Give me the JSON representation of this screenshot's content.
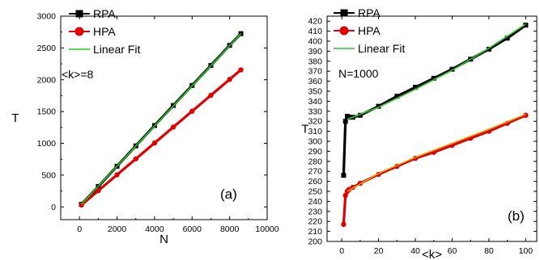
{
  "chart_data": [
    {
      "type": "line",
      "panel_label": "(a)",
      "annotation": "<k>=8",
      "xlabel": "N",
      "ylabel": "T",
      "xlim": [
        -1000,
        10000
      ],
      "ylim": [
        -200,
        3000
      ],
      "xticks": [
        0,
        2000,
        4000,
        6000,
        8000,
        10000
      ],
      "yticks": [
        0,
        500,
        1000,
        1500,
        2000,
        2500,
        3000
      ],
      "legend_position": "top-left",
      "series": [
        {
          "name": "RPA",
          "color": "#000000",
          "marker": "square",
          "x": [
            100,
            1000,
            2000,
            3000,
            4000,
            5000,
            6000,
            7000,
            8000,
            8600
          ],
          "y": [
            40,
            320,
            640,
            960,
            1280,
            1595,
            1910,
            2225,
            2540,
            2725
          ]
        },
        {
          "name": "HPA",
          "color": "#e00000",
          "marker": "circle",
          "x": [
            100,
            1000,
            2000,
            3000,
            4000,
            5000,
            6000,
            7000,
            8000,
            8600
          ],
          "y": [
            30,
            255,
            505,
            755,
            1005,
            1255,
            1505,
            1755,
            2005,
            2155
          ]
        },
        {
          "name": "Linear Fit",
          "color": "#22cc22",
          "marker": "none",
          "x": [
            100,
            8600
          ],
          "y": [
            40,
            2725
          ]
        }
      ]
    },
    {
      "type": "line",
      "panel_label": "(b)",
      "annotation": "N=1000",
      "xlabel": "<k>",
      "ylabel": "T",
      "xlim": [
        -8,
        106
      ],
      "ylim": [
        200,
        425
      ],
      "xticks": [
        0,
        20,
        40,
        60,
        80,
        100
      ],
      "yticks": [
        200,
        210,
        220,
        230,
        240,
        250,
        260,
        270,
        280,
        290,
        300,
        310,
        320,
        330,
        340,
        350,
        360,
        370,
        380,
        390,
        400,
        410,
        420
      ],
      "legend_position": "top-left",
      "series": [
        {
          "name": "RPA",
          "color": "#000000",
          "marker": "square",
          "x": [
            1,
            2,
            3,
            4,
            6,
            10,
            20,
            30,
            40,
            50,
            60,
            70,
            80,
            90,
            100
          ],
          "y": [
            266,
            320,
            325,
            324,
            324,
            326,
            335,
            345,
            354,
            363,
            372,
            382,
            392,
            403,
            416
          ]
        },
        {
          "name": "HPA",
          "color": "#e00000",
          "marker": "circle",
          "x": [
            1,
            2,
            3,
            4,
            6,
            10,
            20,
            30,
            40,
            50,
            60,
            70,
            80,
            90,
            100
          ],
          "y": [
            217,
            246,
            250,
            252,
            254,
            258,
            267,
            275,
            283,
            289,
            296,
            303,
            310,
            318,
            326
          ]
        },
        {
          "name": "Linear Fit",
          "color": "#22cc22",
          "marker": "none",
          "x": [
            3,
            20,
            40,
            60,
            80,
            100
          ],
          "y": [
            322,
            334,
            352,
            371,
            393,
            417
          ]
        },
        {
          "name": "",
          "color": "#d8a000",
          "marker": "none",
          "x": [
            3,
            20,
            40,
            60,
            80,
            100
          ],
          "y": [
            250,
            268,
            284,
            298,
            312,
            327
          ]
        }
      ]
    }
  ]
}
